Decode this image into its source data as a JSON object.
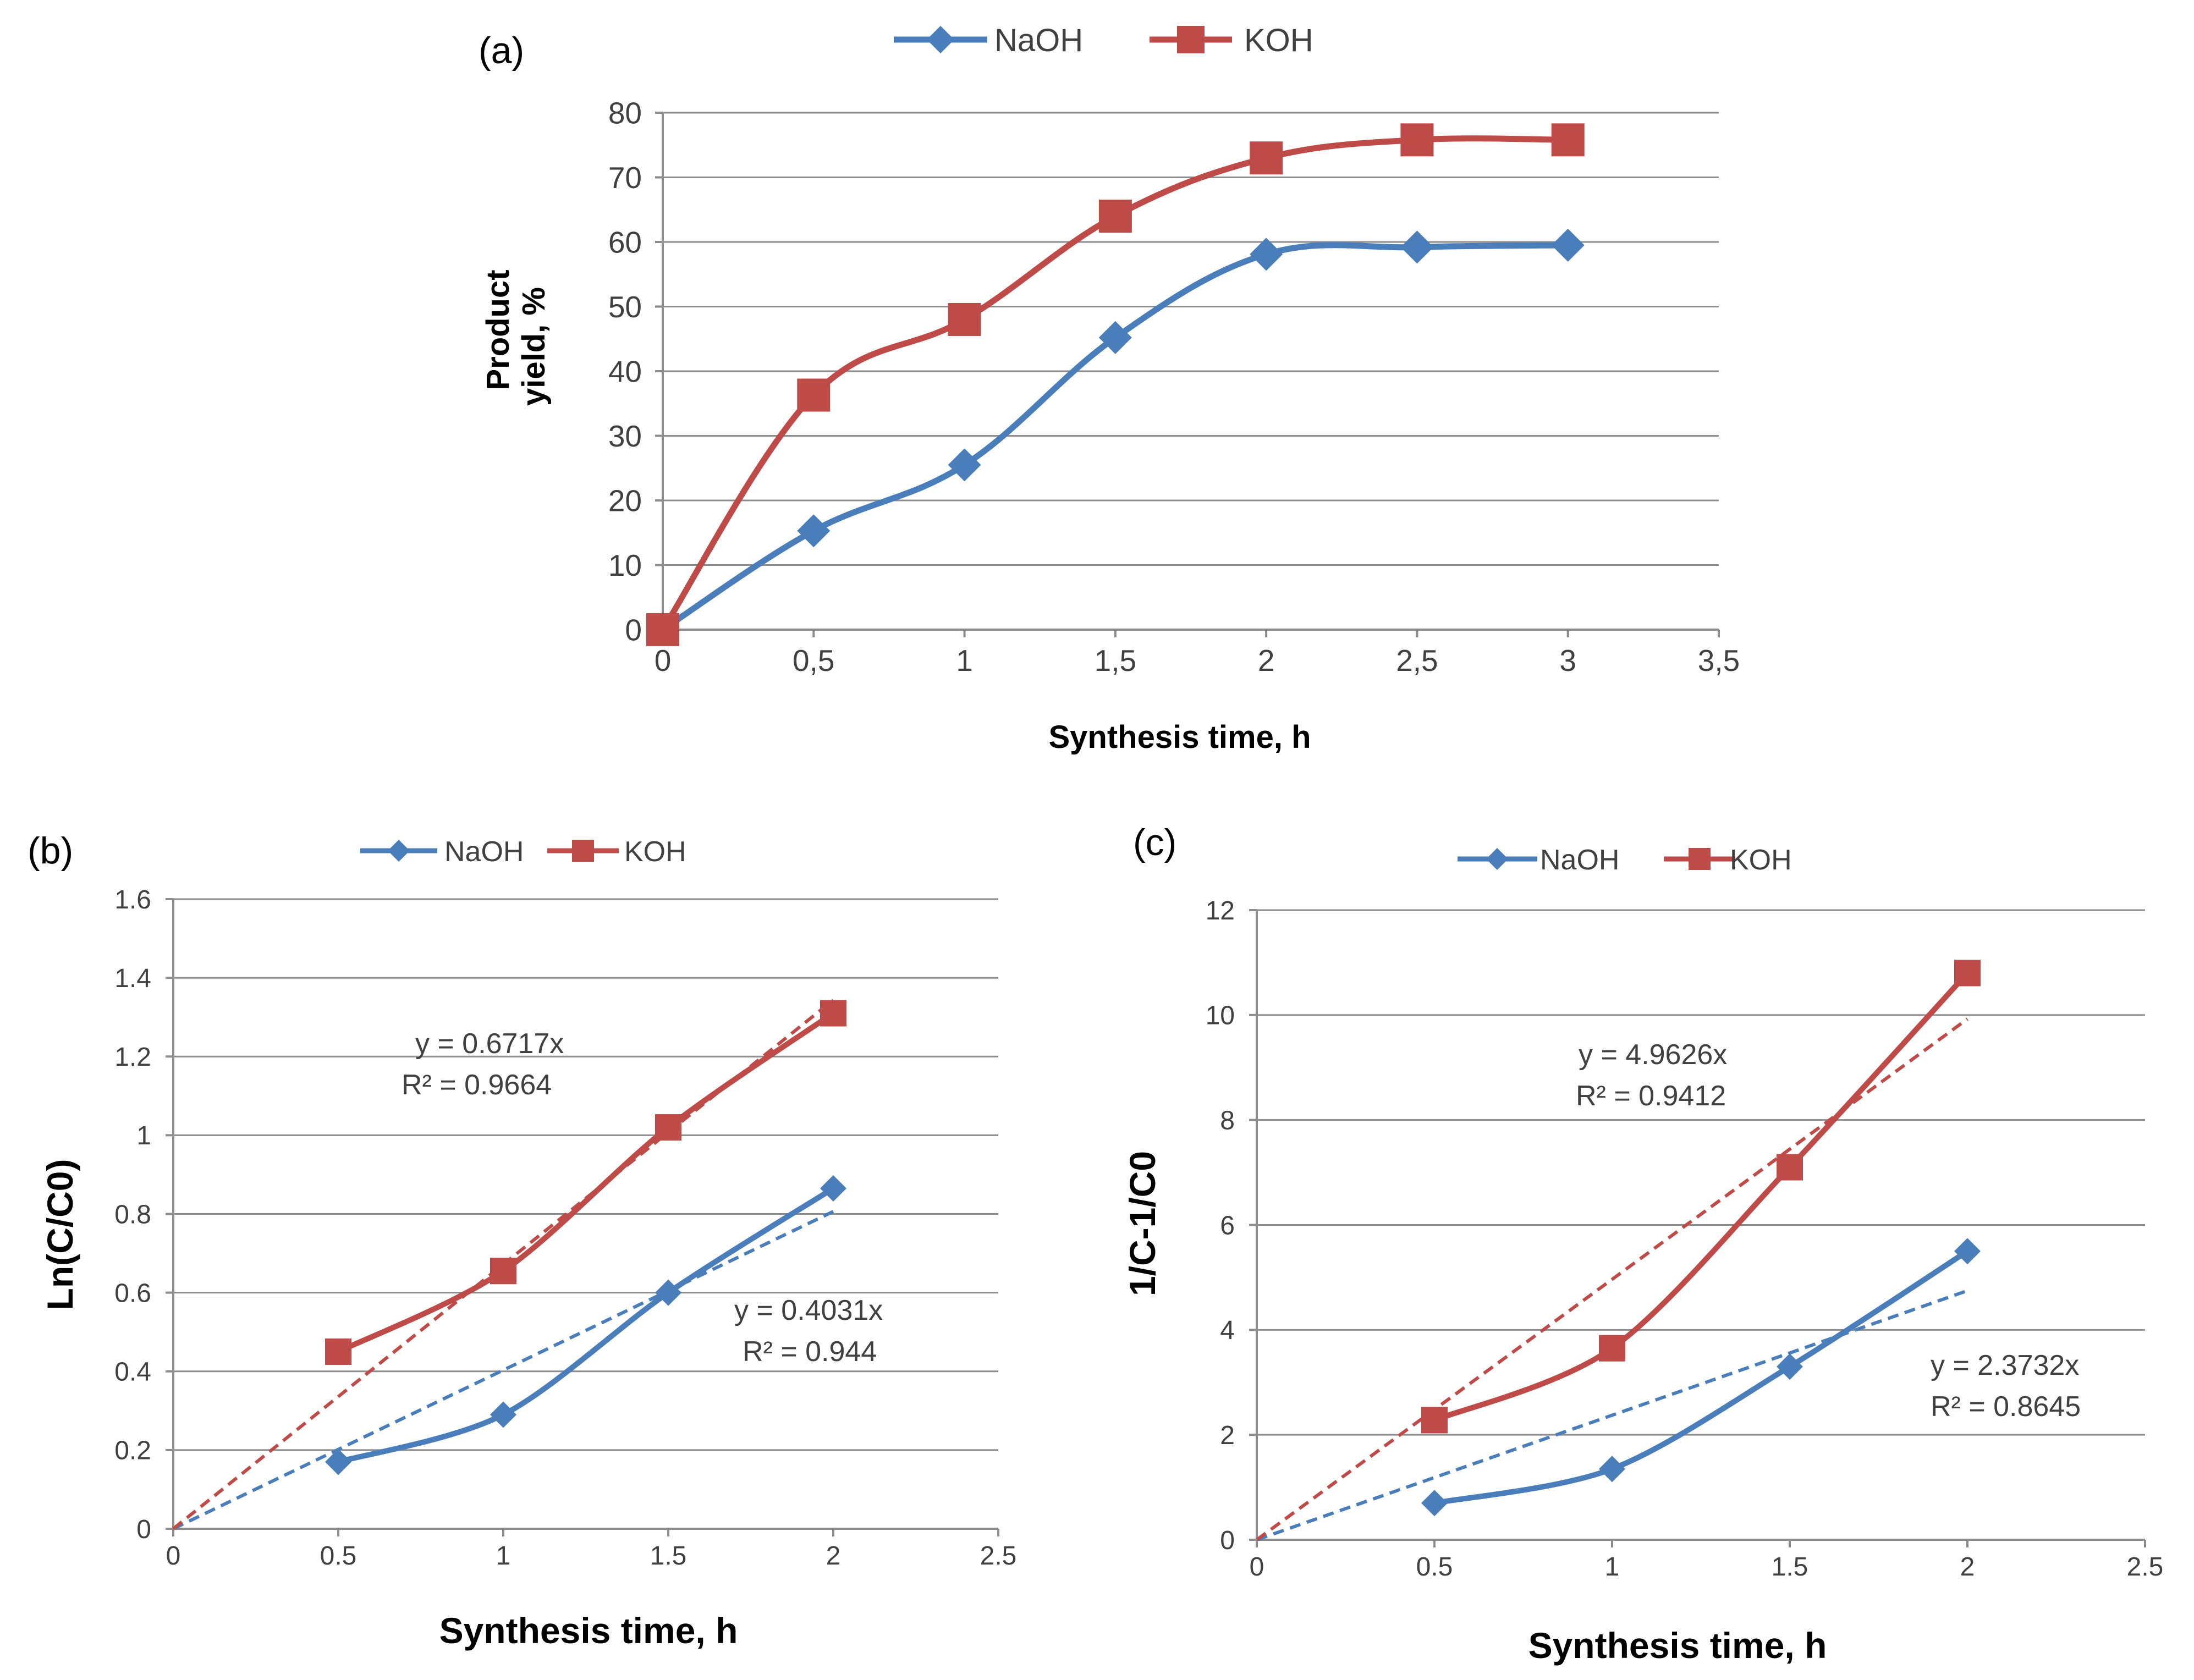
{
  "colors": {
    "naoh": "#4a7ebb",
    "koh": "#be4b48",
    "grid": "#8c8c8c",
    "axis": "#8c8c8c"
  },
  "chart_data": [
    {
      "id": "a",
      "type": "line",
      "panel_label": "(a)",
      "xlabel": "Synthesis time, h",
      "ylabel_lines": [
        "Product",
        "yield, %"
      ],
      "xlim": [
        0,
        3.5
      ],
      "ylim": [
        0,
        80
      ],
      "x_ticks": [
        0,
        0.5,
        1,
        1.5,
        2,
        2.5,
        3,
        3.5
      ],
      "x_tick_labels": [
        "0",
        "0,5",
        "1",
        "1,5",
        "2",
        "2,5",
        "3",
        "3,5"
      ],
      "y_ticks": [
        0,
        10,
        20,
        30,
        40,
        50,
        60,
        70,
        80
      ],
      "y_tick_labels": [
        "0",
        "10",
        "20",
        "30",
        "40",
        "50",
        "60",
        "70",
        "80"
      ],
      "legend_position": "top",
      "series": [
        {
          "name": "NaOH",
          "marker": "diamond",
          "color_key": "naoh",
          "x": [
            0,
            0.5,
            1,
            1.5,
            2,
            2.5,
            3
          ],
          "y": [
            0,
            15.3,
            25.5,
            45.2,
            58.1,
            59.2,
            59.5
          ]
        },
        {
          "name": "KOH",
          "marker": "square",
          "color_key": "koh",
          "x": [
            0,
            0.5,
            1,
            1.5,
            2,
            2.5,
            3
          ],
          "y": [
            0,
            36.3,
            48.0,
            64.0,
            73.0,
            75.8,
            75.8
          ]
        }
      ]
    },
    {
      "id": "b",
      "type": "line",
      "panel_label": "(b)",
      "xlabel": "Synthesis time, h",
      "ylabel": "Ln(C/C0)",
      "xlim": [
        0,
        2.5
      ],
      "ylim": [
        0,
        1.6
      ],
      "x_ticks": [
        0,
        0.5,
        1,
        1.5,
        2,
        2.5
      ],
      "x_tick_labels": [
        "0",
        "0.5",
        "1",
        "1.5",
        "2",
        "2.5"
      ],
      "y_ticks": [
        0,
        0.2,
        0.4,
        0.6,
        0.8,
        1.0,
        1.2,
        1.4,
        1.6
      ],
      "y_tick_labels": [
        "0",
        "0.2",
        "0.4",
        "0.6",
        "0.8",
        "1",
        "1.2",
        "1.4",
        "1.6"
      ],
      "legend_position": "top",
      "series": [
        {
          "name": "NaOH",
          "marker": "diamond",
          "color_key": "naoh",
          "x": [
            0.5,
            1,
            1.5,
            2
          ],
          "y": [
            0.17,
            0.29,
            0.6,
            0.865
          ]
        },
        {
          "name": "KOH",
          "marker": "square",
          "color_key": "koh",
          "x": [
            0.5,
            1,
            1.5,
            2
          ],
          "y": [
            0.45,
            0.655,
            1.02,
            1.31
          ]
        }
      ],
      "trendlines": [
        {
          "series": "NaOH",
          "slope": 0.4031,
          "x_range": [
            0,
            2
          ],
          "equation": "y = 0.4031x",
          "r2": "R² = 0.944"
        },
        {
          "series": "KOH",
          "slope": 0.6717,
          "x_range": [
            0,
            2
          ],
          "equation": "y = 0.6717x",
          "r2": "R² = 0.9664"
        }
      ]
    },
    {
      "id": "c",
      "type": "line",
      "panel_label": "(c)",
      "xlabel": "Synthesis time, h",
      "ylabel": "1/C-1/C0",
      "xlim": [
        0,
        2.5
      ],
      "ylim": [
        0,
        12
      ],
      "x_ticks": [
        0,
        0.5,
        1,
        1.5,
        2,
        2.5
      ],
      "x_tick_labels": [
        "0",
        "0.5",
        "1",
        "1.5",
        "2",
        "2.5"
      ],
      "y_ticks": [
        0,
        2,
        4,
        6,
        8,
        10,
        12
      ],
      "y_tick_labels": [
        "0",
        "2",
        "4",
        "6",
        "8",
        "10",
        "12"
      ],
      "legend_position": "top",
      "series": [
        {
          "name": "NaOH",
          "marker": "diamond",
          "color_key": "naoh",
          "x": [
            0.5,
            1,
            1.5,
            2
          ],
          "y": [
            0.7,
            1.35,
            3.3,
            5.5
          ]
        },
        {
          "name": "KOH",
          "marker": "square",
          "color_key": "koh",
          "x": [
            0.5,
            1,
            1.5,
            2
          ],
          "y": [
            2.28,
            3.65,
            7.1,
            10.8
          ]
        }
      ],
      "trendlines": [
        {
          "series": "NaOH",
          "slope": 2.3732,
          "x_range": [
            0,
            2
          ],
          "equation": "y = 2.3732x",
          "r2": "R² = 0.8645"
        },
        {
          "series": "KOH",
          "slope": 4.9626,
          "x_range": [
            0,
            2
          ],
          "equation": "y = 4.9626x",
          "r2": "R² = 0.9412"
        }
      ]
    }
  ]
}
